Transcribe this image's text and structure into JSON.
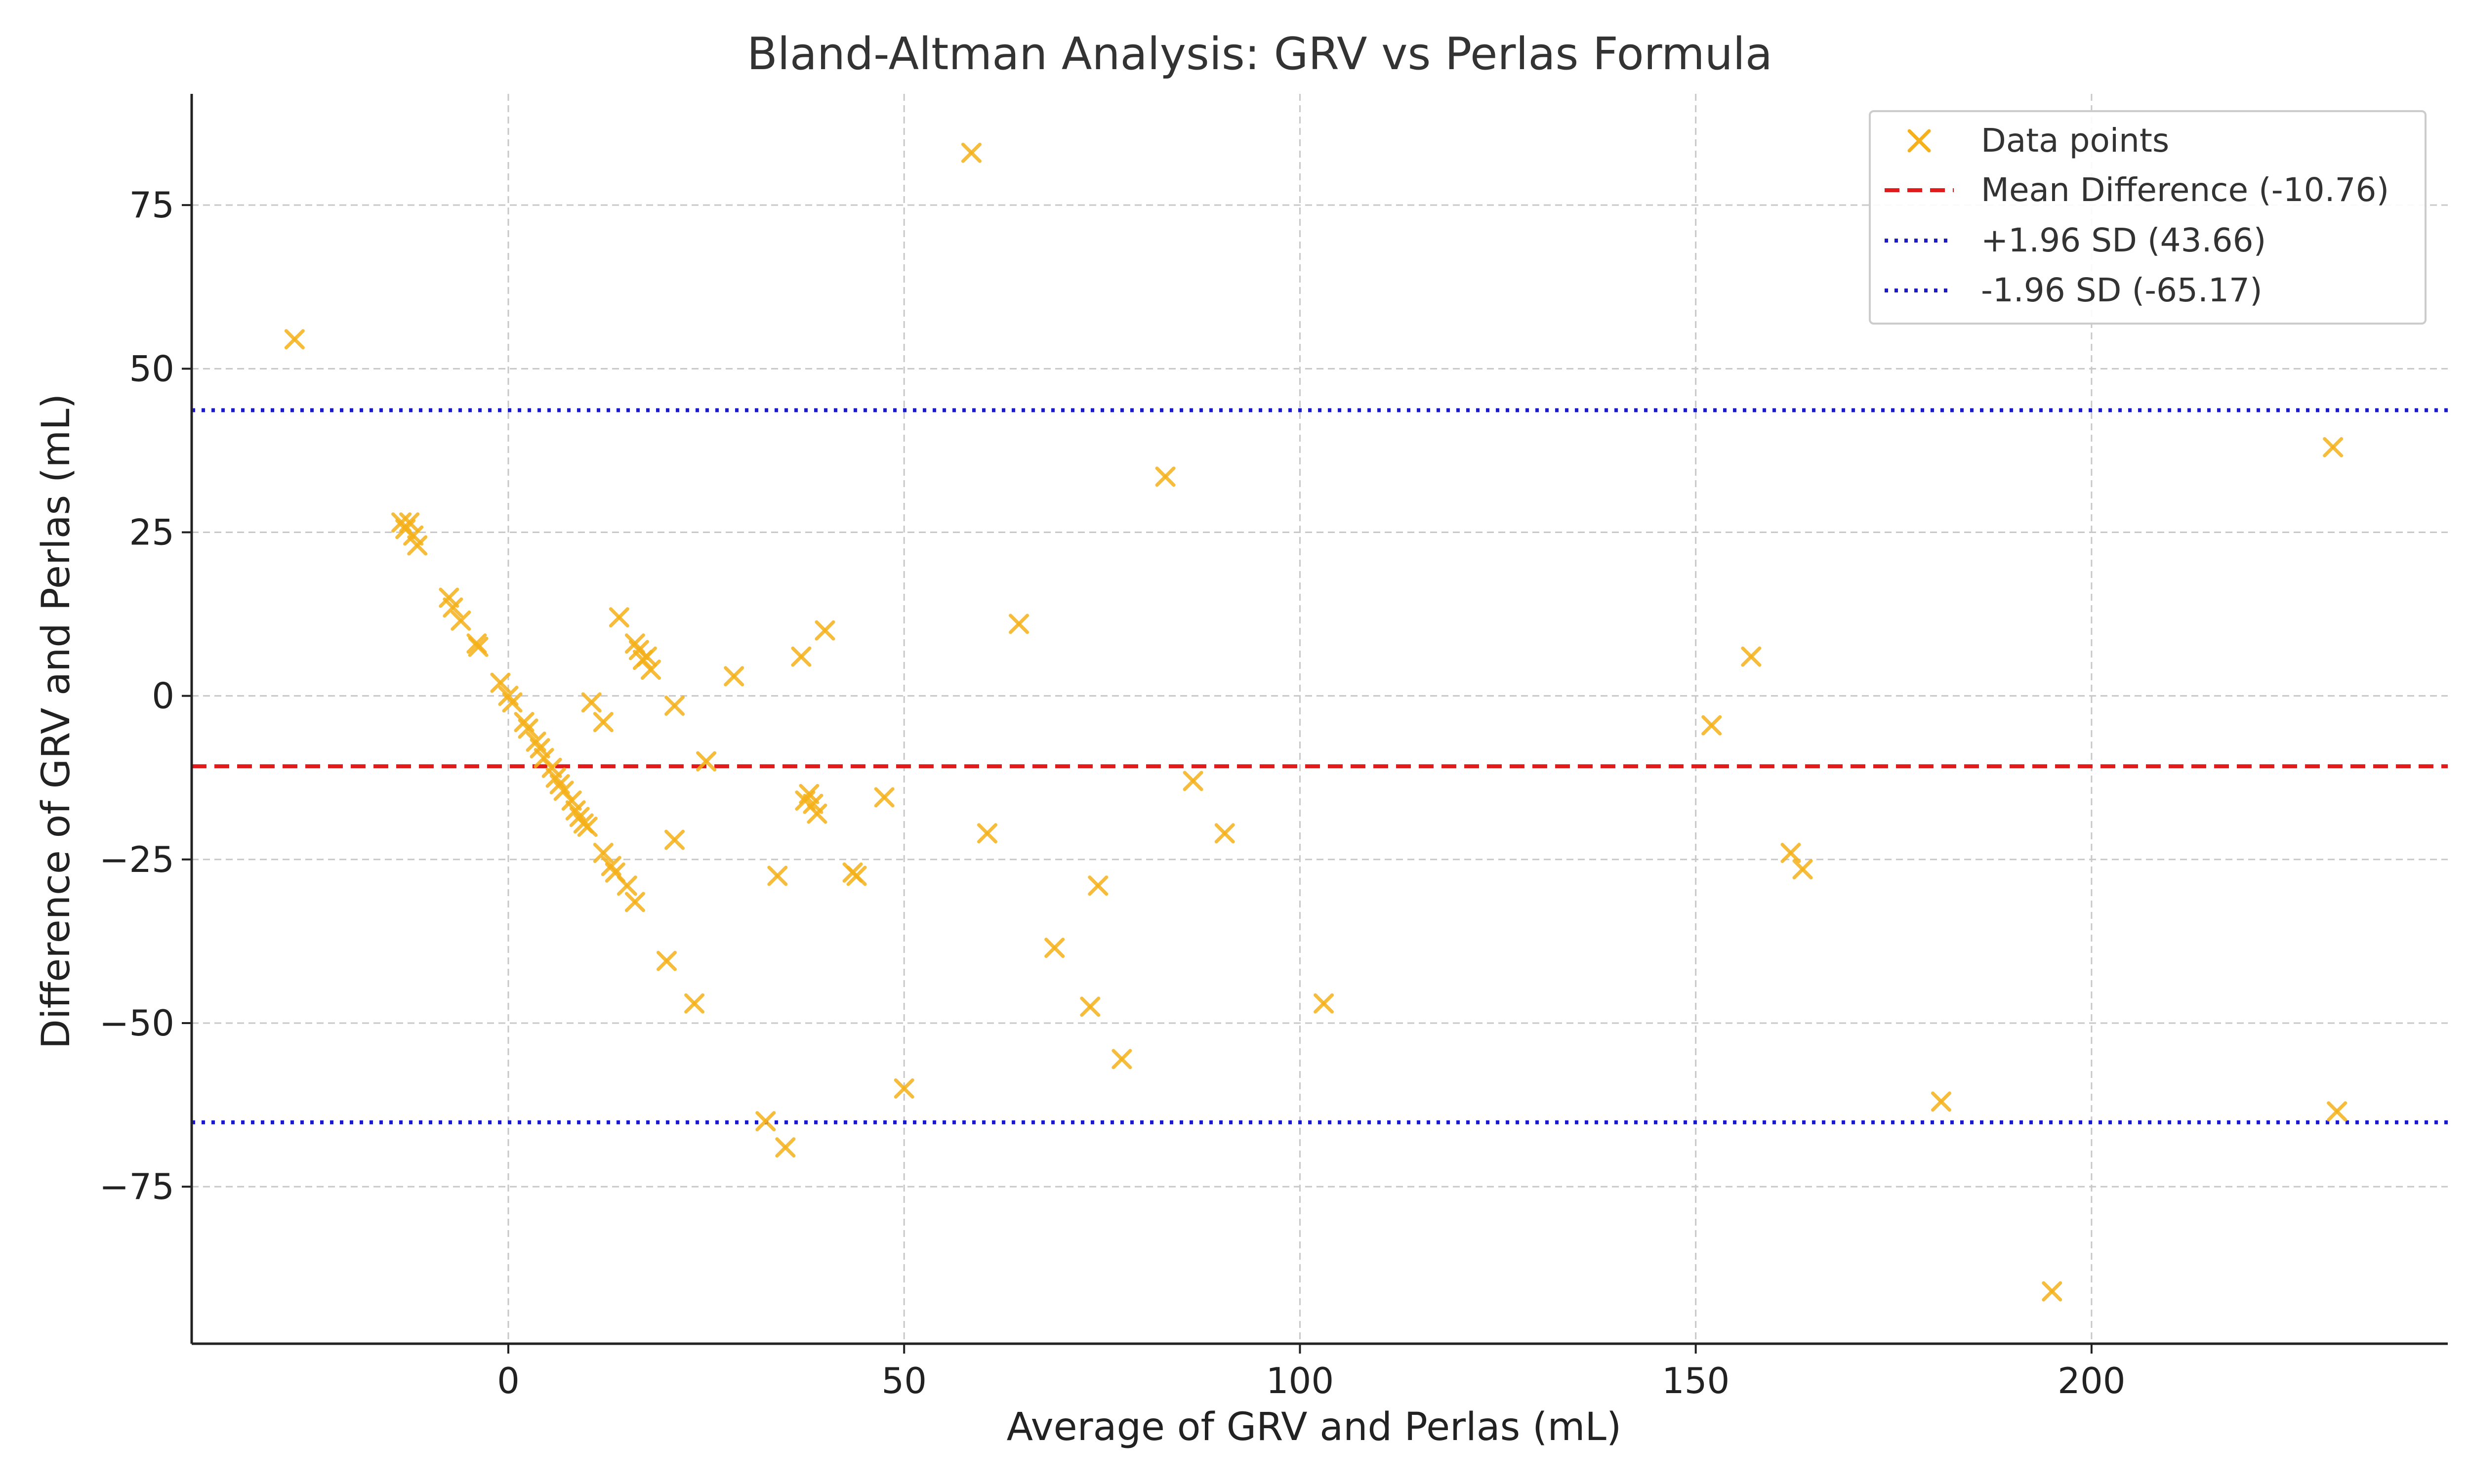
{
  "chart_data": {
    "type": "scatter",
    "title": "Bland-Altman Analysis: GRV vs Perlas Formula",
    "xlabel": "Average of GRV and Perlas (mL)",
    "ylabel": "Difference of GRV and Perlas (mL)",
    "xlim": [
      -40,
      245
    ],
    "ylim": [
      -99,
      92
    ],
    "xticks": [
      0,
      50,
      100,
      150,
      200
    ],
    "yticks": [
      -75,
      -50,
      -25,
      0,
      25,
      50,
      75
    ],
    "grid": true,
    "legend_position": "top-right",
    "series": [
      {
        "name": "Data points",
        "marker": "x",
        "color": "#F5B01A",
        "points": [
          [
            -27,
            54.5
          ],
          [
            -13.5,
            26.5
          ],
          [
            -13,
            25.5
          ],
          [
            -12.5,
            26.5
          ],
          [
            -12,
            24.5
          ],
          [
            -11.5,
            23
          ],
          [
            -7.5,
            15
          ],
          [
            -7,
            13.5
          ],
          [
            -6,
            11.5
          ],
          [
            -4,
            8
          ],
          [
            -3.8,
            7.5
          ],
          [
            -1,
            2
          ],
          [
            0,
            0
          ],
          [
            0.5,
            -1
          ],
          [
            2,
            -4
          ],
          [
            2.5,
            -5
          ],
          [
            3.5,
            -7
          ],
          [
            4,
            -8
          ],
          [
            4.5,
            -9.5
          ],
          [
            5.5,
            -11
          ],
          [
            6,
            -12.5
          ],
          [
            6.5,
            -13.5
          ],
          [
            7,
            -14.5
          ],
          [
            8,
            -16
          ],
          [
            8.5,
            -17.5
          ],
          [
            9,
            -18.5
          ],
          [
            9.5,
            -19.5
          ],
          [
            10,
            -20
          ],
          [
            10.5,
            -1
          ],
          [
            12,
            -4
          ],
          [
            12,
            -24
          ],
          [
            13,
            -26
          ],
          [
            13.5,
            -27
          ],
          [
            14,
            12
          ],
          [
            15,
            -29
          ],
          [
            16,
            -31.5
          ],
          [
            16,
            8
          ],
          [
            16.5,
            7
          ],
          [
            17,
            5.5
          ],
          [
            17.5,
            6
          ],
          [
            18,
            4
          ],
          [
            20,
            -40.5
          ],
          [
            21,
            -1.5
          ],
          [
            21,
            -22
          ],
          [
            23.5,
            -47
          ],
          [
            25,
            -10
          ],
          [
            28.5,
            3
          ],
          [
            32.5,
            -65
          ],
          [
            34,
            -27.5
          ],
          [
            35,
            -69
          ],
          [
            37,
            6
          ],
          [
            37.5,
            -16
          ],
          [
            38,
            -15
          ],
          [
            38.5,
            -16.5
          ],
          [
            39,
            -18
          ],
          [
            40,
            10
          ],
          [
            43.5,
            -27
          ],
          [
            44,
            -27.5
          ],
          [
            47.5,
            -15.5
          ],
          [
            50,
            -60
          ],
          [
            58.5,
            83
          ],
          [
            60.5,
            -21
          ],
          [
            64.5,
            11
          ],
          [
            69,
            -38.5
          ],
          [
            73.5,
            -47.5
          ],
          [
            74.5,
            -29
          ],
          [
            77.5,
            -55.5
          ],
          [
            83,
            33.5
          ],
          [
            86.5,
            -13
          ],
          [
            90.5,
            -21
          ],
          [
            103,
            -47
          ],
          [
            152,
            -4.5
          ],
          [
            157,
            6
          ],
          [
            162,
            -24
          ],
          [
            163.5,
            -26.5
          ],
          [
            181,
            -62
          ],
          [
            195,
            -91
          ],
          [
            230.5,
            38
          ],
          [
            231,
            -63.5
          ]
        ]
      }
    ],
    "reference_lines": [
      {
        "name": "Mean Difference (-10.76)",
        "y": -10.76,
        "style": "dashed",
        "color": "#E01B1B"
      },
      {
        "name": "+1.96 SD (43.66)",
        "y": 43.66,
        "style": "dotted",
        "color": "#1A1ACC"
      },
      {
        "name": "-1.96 SD (-65.17)",
        "y": -65.17,
        "style": "dotted",
        "color": "#1A1ACC"
      }
    ]
  }
}
